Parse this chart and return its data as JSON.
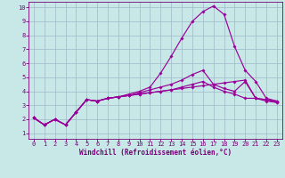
{
  "xlabel": "Windchill (Refroidissement éolien,°C)",
  "bg_color": "#c8e8e8",
  "grid_color": "#a0b8c8",
  "line_color": "#990099",
  "xlim_min": -0.5,
  "xlim_max": 23.5,
  "ylim_min": 0.6,
  "ylim_max": 10.4,
  "xticks": [
    0,
    1,
    2,
    3,
    4,
    5,
    6,
    7,
    8,
    9,
    10,
    11,
    12,
    13,
    14,
    15,
    16,
    17,
    18,
    19,
    20,
    21,
    22,
    23
  ],
  "yticks": [
    1,
    2,
    3,
    4,
    5,
    6,
    7,
    8,
    9,
    10
  ],
  "series": [
    [
      2.1,
      1.6,
      2.0,
      1.6,
      2.5,
      3.4,
      3.3,
      3.5,
      3.6,
      3.7,
      3.8,
      3.9,
      4.0,
      4.1,
      4.2,
      4.3,
      4.4,
      4.5,
      4.6,
      4.7,
      4.8,
      3.5,
      3.4,
      3.3
    ],
    [
      2.1,
      1.6,
      2.0,
      1.6,
      2.5,
      3.4,
      3.3,
      3.5,
      3.6,
      3.7,
      3.8,
      3.9,
      4.0,
      4.1,
      4.3,
      4.5,
      4.7,
      4.3,
      4.0,
      3.8,
      3.5,
      3.5,
      3.3,
      3.2
    ],
    [
      2.1,
      1.6,
      2.0,
      1.6,
      2.5,
      3.4,
      3.3,
      3.5,
      3.6,
      3.7,
      3.9,
      4.1,
      4.3,
      4.5,
      4.8,
      5.2,
      5.5,
      4.5,
      4.2,
      4.0,
      4.7,
      3.5,
      3.4,
      3.2
    ],
    [
      2.1,
      1.6,
      2.0,
      1.6,
      2.5,
      3.4,
      3.3,
      3.5,
      3.6,
      3.8,
      4.0,
      4.3,
      5.3,
      6.5,
      7.8,
      9.0,
      9.7,
      10.1,
      9.5,
      7.2,
      5.5,
      4.7,
      3.5,
      3.3
    ]
  ],
  "tick_color": "#770077",
  "label_fontsize": 5.0,
  "xlabel_fontsize": 5.5
}
